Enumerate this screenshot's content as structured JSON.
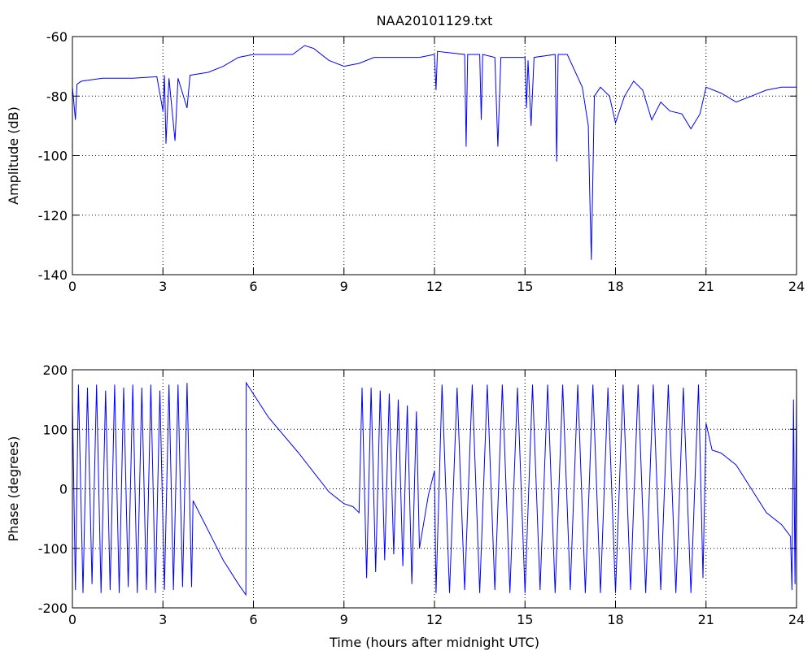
{
  "chart_data": [
    {
      "type": "line",
      "title": "NAA20101129.txt",
      "y_label": "Amplitude (dB)",
      "grid": true,
      "xlim": [
        0,
        24
      ],
      "xticks": [
        0,
        3,
        6,
        9,
        12,
        15,
        18,
        21,
        24
      ],
      "ylim": [
        -140,
        -60
      ],
      "yticks": [
        -140,
        -120,
        -100,
        -80,
        -60
      ],
      "series": [
        {
          "color": "#0000ff",
          "x": [
            0,
            0.1,
            0.15,
            0.3,
            1,
            2,
            2.8,
            3.0,
            3.05,
            3.1,
            3.2,
            3.4,
            3.5,
            3.8,
            3.9,
            4.5,
            5,
            5.5,
            6,
            7,
            7.3,
            7.7,
            8,
            8.5,
            9,
            9.5,
            10,
            11,
            11.5,
            12,
            12.05,
            12.1,
            13,
            13.05,
            13.1,
            13.5,
            13.55,
            13.6,
            14,
            14.1,
            14.2,
            15,
            15.05,
            15.1,
            15.2,
            15.3,
            16,
            16.05,
            16.1,
            16.4,
            16.9,
            17.1,
            17.15,
            17.2,
            17.3,
            17.5,
            17.8,
            18,
            18.3,
            18.6,
            18.9,
            19.2,
            19.5,
            19.8,
            20.2,
            20.5,
            20.8,
            21,
            21.5,
            22,
            22.5,
            23,
            23.5,
            24
          ],
          "values": [
            -77,
            -88,
            -76,
            -75,
            -74,
            -74,
            -73.5,
            -85,
            -73,
            -96,
            -74,
            -95,
            -74,
            -84,
            -73,
            -72,
            -70,
            -67,
            -66,
            -66,
            -66,
            -63,
            -64,
            -68,
            -70,
            -69,
            -67,
            -67,
            -67,
            -66,
            -78,
            -65,
            -66,
            -97,
            -66,
            -66,
            -88,
            -66,
            -67,
            -97,
            -67,
            -67,
            -84,
            -68,
            -90,
            -67,
            -66,
            -102,
            -66,
            -66,
            -77,
            -90,
            -115,
            -135,
            -80,
            -77,
            -80,
            -89,
            -80,
            -75,
            -78,
            -88,
            -82,
            -85,
            -86,
            -91,
            -86,
            -77,
            -79,
            -82,
            -80,
            -78,
            -77,
            -77
          ]
        }
      ]
    },
    {
      "type": "line",
      "x_label": "Time (hours after midnight UTC)",
      "y_label": "Phase (degrees)",
      "grid": true,
      "xlim": [
        0,
        24
      ],
      "xticks": [
        0,
        3,
        6,
        9,
        12,
        15,
        18,
        21,
        24
      ],
      "ylim": [
        -200,
        200
      ],
      "yticks": [
        -200,
        -100,
        0,
        100,
        200
      ],
      "series": [
        {
          "color": "#0000ff",
          "x": [
            0,
            0.1,
            0.2,
            0.35,
            0.5,
            0.65,
            0.8,
            0.95,
            1.1,
            1.25,
            1.4,
            1.55,
            1.7,
            1.85,
            2.0,
            2.15,
            2.3,
            2.45,
            2.6,
            2.75,
            2.9,
            3.05,
            3.2,
            3.35,
            3.5,
            3.65,
            3.8,
            3.95,
            4.0,
            4.5,
            5.0,
            5.5,
            5.75,
            5.76,
            6.5,
            7.5,
            8.5,
            9.0,
            9.3,
            9.5,
            9.6,
            9.75,
            9.9,
            10.05,
            10.2,
            10.35,
            10.5,
            10.65,
            10.8,
            10.95,
            11.1,
            11.25,
            11.4,
            11.5,
            11.8,
            12.0,
            12.05,
            12.25,
            12.5,
            12.75,
            13,
            13.25,
            13.5,
            13.75,
            14,
            14.25,
            14.5,
            14.75,
            15,
            15.25,
            15.5,
            15.75,
            16,
            16.25,
            16.5,
            16.75,
            17,
            17.25,
            17.5,
            17.75,
            18,
            18.25,
            18.5,
            18.75,
            19,
            19.25,
            19.5,
            19.75,
            20,
            20.25,
            20.5,
            20.75,
            20.9,
            21.0,
            21.2,
            21.5,
            22,
            22.5,
            23,
            23.5,
            23.8,
            23.85,
            23.9,
            23.95,
            24
          ],
          "values": [
            150,
            -170,
            175,
            -175,
            170,
            -160,
            175,
            -175,
            165,
            -170,
            175,
            -175,
            170,
            -165,
            175,
            -175,
            170,
            -170,
            175,
            -175,
            165,
            -170,
            175,
            -170,
            175,
            -165,
            178,
            -165,
            -20,
            -70,
            -120,
            -160,
            -178,
            178,
            120,
            60,
            -5,
            -25,
            -30,
            -40,
            170,
            -150,
            170,
            -140,
            165,
            -120,
            160,
            -110,
            150,
            -130,
            140,
            -160,
            130,
            -100,
            -10,
            30,
            -175,
            175,
            -175,
            170,
            -170,
            175,
            -175,
            175,
            -170,
            175,
            -175,
            170,
            -175,
            175,
            -170,
            175,
            -175,
            175,
            -170,
            175,
            -175,
            175,
            -175,
            170,
            -175,
            175,
            -170,
            175,
            -175,
            175,
            -170,
            175,
            -175,
            170,
            -175,
            175,
            -150,
            110,
            65,
            60,
            40,
            0,
            -40,
            -60,
            -80,
            -170,
            150,
            -160,
            160
          ]
        }
      ]
    }
  ]
}
